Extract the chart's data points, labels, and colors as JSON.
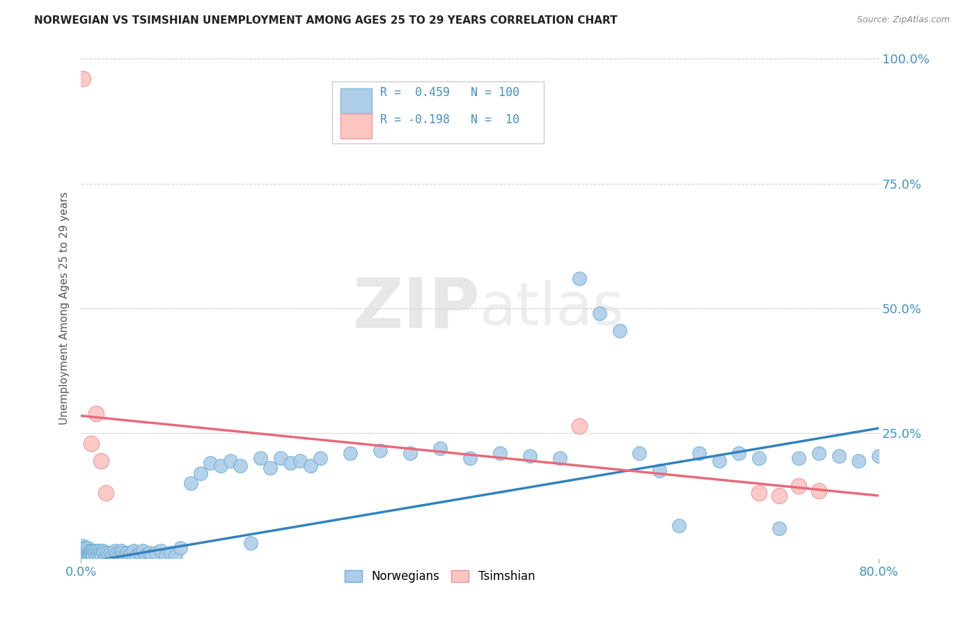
{
  "title": "NORWEGIAN VS TSIMSHIAN UNEMPLOYMENT AMONG AGES 25 TO 29 YEARS CORRELATION CHART",
  "source": "Source: ZipAtlas.com",
  "ylabel": "Unemployment Among Ages 25 to 29 years",
  "xlim": [
    0.0,
    0.8
  ],
  "ylim": [
    0.0,
    1.0
  ],
  "norwegian_color": "#aecde8",
  "norwegian_edge_color": "#6baed6",
  "tsimshian_color": "#fcc5c0",
  "tsimshian_edge_color": "#e8909a",
  "trend_norwegian_color": "#3182bd",
  "trend_tsimshian_color": "#e8697a",
  "background_color": "#ffffff",
  "grid_color": "#cccccc",
  "norwegian_x": [
    0.0,
    0.001,
    0.002,
    0.002,
    0.003,
    0.003,
    0.004,
    0.004,
    0.005,
    0.005,
    0.006,
    0.006,
    0.007,
    0.007,
    0.008,
    0.008,
    0.009,
    0.009,
    0.01,
    0.01,
    0.011,
    0.011,
    0.012,
    0.012,
    0.013,
    0.014,
    0.015,
    0.016,
    0.017,
    0.018,
    0.019,
    0.02,
    0.021,
    0.022,
    0.023,
    0.025,
    0.026,
    0.028,
    0.03,
    0.032,
    0.034,
    0.036,
    0.038,
    0.04,
    0.042,
    0.044,
    0.046,
    0.048,
    0.05,
    0.053,
    0.056,
    0.059,
    0.062,
    0.065,
    0.068,
    0.071,
    0.075,
    0.08,
    0.085,
    0.09,
    0.095,
    0.1,
    0.11,
    0.12,
    0.13,
    0.14,
    0.15,
    0.16,
    0.17,
    0.18,
    0.19,
    0.2,
    0.21,
    0.22,
    0.23,
    0.24,
    0.27,
    0.3,
    0.33,
    0.36,
    0.39,
    0.42,
    0.45,
    0.48,
    0.5,
    0.52,
    0.54,
    0.56,
    0.58,
    0.6,
    0.62,
    0.64,
    0.66,
    0.68,
    0.7,
    0.72,
    0.74,
    0.76,
    0.78,
    0.8
  ],
  "norwegian_y": [
    0.02,
    0.015,
    0.01,
    0.025,
    0.01,
    0.02,
    0.015,
    0.005,
    0.01,
    0.02,
    0.005,
    0.015,
    0.01,
    0.02,
    0.005,
    0.015,
    0.01,
    0.005,
    0.015,
    0.01,
    0.005,
    0.015,
    0.01,
    0.005,
    0.015,
    0.01,
    0.005,
    0.015,
    0.01,
    0.005,
    0.015,
    0.01,
    0.005,
    0.015,
    0.01,
    0.005,
    0.01,
    0.005,
    0.01,
    0.005,
    0.015,
    0.01,
    0.005,
    0.015,
    0.01,
    0.005,
    0.01,
    0.005,
    0.01,
    0.015,
    0.005,
    0.01,
    0.015,
    0.005,
    0.01,
    0.005,
    0.01,
    0.015,
    0.005,
    0.01,
    0.005,
    0.02,
    0.15,
    0.17,
    0.19,
    0.185,
    0.195,
    0.185,
    0.03,
    0.2,
    0.18,
    0.2,
    0.19,
    0.195,
    0.185,
    0.2,
    0.21,
    0.215,
    0.21,
    0.22,
    0.2,
    0.21,
    0.205,
    0.2,
    0.56,
    0.49,
    0.455,
    0.21,
    0.175,
    0.065,
    0.21,
    0.195,
    0.21,
    0.2,
    0.06,
    0.2,
    0.21,
    0.205,
    0.195,
    0.205
  ],
  "tsimshian_x": [
    0.002,
    0.01,
    0.015,
    0.02,
    0.025,
    0.5,
    0.68,
    0.7,
    0.72,
    0.74
  ],
  "tsimshian_y": [
    0.96,
    0.23,
    0.29,
    0.195,
    0.13,
    0.265,
    0.13,
    0.125,
    0.145,
    0.135
  ],
  "trend_nor_x0": 0.0,
  "trend_nor_y0": -0.01,
  "trend_nor_x1": 0.8,
  "trend_nor_y1": 0.26,
  "trend_tsi_x0": 0.0,
  "trend_tsi_y0": 0.285,
  "trend_tsi_x1": 0.8,
  "trend_tsi_y1": 0.125,
  "figsize": [
    14.06,
    8.92
  ],
  "dpi": 100
}
